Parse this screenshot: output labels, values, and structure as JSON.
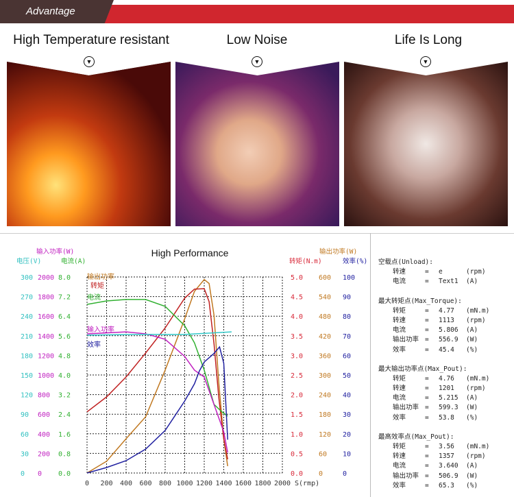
{
  "banner": {
    "title": "Advantage"
  },
  "features": [
    {
      "title": "High Temperature resistant",
      "image": "sparks-grinding"
    },
    {
      "title": "Low Noise",
      "image": "sleeping-baby"
    },
    {
      "title": "Life Is Long",
      "image": "clock-mechanism"
    }
  ],
  "chart_data": {
    "type": "line",
    "title": "High Performance",
    "xlabel": "S(rmp)",
    "xlim": [
      0,
      2000
    ],
    "x_ticks": [
      "0",
      "200",
      "400",
      "600",
      "800",
      "1000",
      "1200",
      "1400",
      "1600",
      "1800",
      "2000"
    ],
    "grid": true,
    "axes": {
      "voltage": {
        "label": "电压(V)",
        "side": "left",
        "range": [
          0,
          300
        ],
        "ticks": [
          "300",
          "270",
          "240",
          "210",
          "180",
          "150",
          "120",
          "90",
          "60",
          "30",
          "0"
        ],
        "color": "#30c0c0"
      },
      "input_power": {
        "label": "输入功率(W)",
        "side": "left",
        "range": [
          0,
          2000
        ],
        "ticks": [
          "2000",
          "1800",
          "1600",
          "1400",
          "1200",
          "1000",
          "800",
          "600",
          "400",
          "200",
          "0"
        ],
        "color": "#c020c0"
      },
      "current": {
        "label": "电流(A)",
        "side": "left",
        "range": [
          0,
          8
        ],
        "ticks": [
          "8.0",
          "7.2",
          "6.4",
          "5.6",
          "4.8",
          "4.0",
          "3.2",
          "2.4",
          "1.6",
          "0.8",
          "0.0"
        ],
        "color": "#30b030"
      },
      "torque": {
        "label": "转矩(N.m)",
        "side": "right",
        "range": [
          0,
          5
        ],
        "ticks": [
          "5.0",
          "4.5",
          "4.0",
          "3.5",
          "3.0",
          "2.5",
          "2.0",
          "1.5",
          "1.0",
          "0.5",
          "0.0"
        ],
        "color": "#d82838"
      },
      "output_power": {
        "label": "输出功率(W)",
        "side": "right",
        "range": [
          0,
          600
        ],
        "ticks": [
          "600",
          "540",
          "480",
          "420",
          "360",
          "300",
          "240",
          "180",
          "120",
          "60",
          "0"
        ],
        "color": "#c07820"
      },
      "efficiency": {
        "label": "效率(%)",
        "side": "right",
        "range": [
          0,
          100
        ],
        "ticks": [
          "100",
          "90",
          "80",
          "70",
          "60",
          "50",
          "40",
          "30",
          "20",
          "10",
          "0"
        ],
        "color": "#2020a0"
      }
    },
    "series": [
      {
        "name": "输出功率",
        "axis": "output_power",
        "color": "#c07820",
        "x": [
          0,
          200,
          400,
          600,
          800,
          1000,
          1100,
          1200,
          1250,
          1300,
          1350,
          1400,
          1440
        ],
        "y": [
          0,
          36,
          105,
          172,
          315,
          472,
          556,
          592,
          580,
          483,
          273,
          105,
          21
        ]
      },
      {
        "name": "转矩",
        "axis": "torque",
        "color": "#c02020",
        "x": [
          0,
          200,
          400,
          600,
          800,
          1000,
          1100,
          1200,
          1250,
          1300,
          1350,
          1400,
          1440
        ],
        "y": [
          1.56,
          1.94,
          2.45,
          3.06,
          3.7,
          4.46,
          4.69,
          4.7,
          4.37,
          3.3,
          1.9,
          0.87,
          0.35
        ]
      },
      {
        "name": "电流",
        "axis": "current",
        "color": "#30b030",
        "x": [
          0,
          200,
          400,
          600,
          800,
          1000,
          1100,
          1200,
          1300,
          1380,
          1440
        ],
        "y": [
          6.88,
          7.02,
          7.08,
          7.08,
          6.8,
          6.01,
          5.31,
          4.2,
          2.8,
          2.5,
          2.32
        ]
      },
      {
        "name": "输入功率",
        "axis": "input_power",
        "color": "#c020c0",
        "x": [
          0,
          400,
          600,
          800,
          1000,
          1100,
          1200,
          1300,
          1400,
          1440
        ],
        "y": [
          1420,
          1440,
          1420,
          1364,
          1189,
          1049,
          979,
          699,
          420,
          210
        ]
      },
      {
        "name": "",
        "axis": "voltage",
        "color": "#30c8c8",
        "x": [
          0,
          500,
          1000,
          1480
        ],
        "y": [
          211,
          212,
          212,
          216
        ]
      },
      {
        "name": "效率",
        "axis": "efficiency",
        "color": "#2020a0",
        "x": [
          0,
          200,
          400,
          600,
          800,
          1000,
          1100,
          1150,
          1200,
          1300,
          1357,
          1400,
          1440
        ],
        "y": [
          0,
          2.8,
          6.3,
          12.2,
          21.7,
          36.7,
          45.5,
          52,
          56.6,
          61,
          64.3,
          56,
          17
        ]
      }
    ]
  },
  "info": {
    "sections": [
      {
        "title": "空载点(Unload):",
        "rows": [
          {
            "label": "转速",
            "value": "e",
            "unit": "(rpm)"
          },
          {
            "label": "电流",
            "value": "Text1",
            "unit": "(A)"
          }
        ]
      },
      {
        "title": "最大转矩点(Max_Torque):",
        "rows": [
          {
            "label": "转矩",
            "value": "4.77",
            "unit": "(mN.m)"
          },
          {
            "label": "转速",
            "value": "1113",
            "unit": "(rpm)"
          },
          {
            "label": "电流",
            "value": "5.806",
            "unit": "(A)"
          },
          {
            "label": "输出功率",
            "value": "556.9",
            "unit": "(W)"
          },
          {
            "label": "效率",
            "value": "45.4",
            "unit": "(%)"
          }
        ]
      },
      {
        "title": "最大输出功率点(Max_Pout):",
        "rows": [
          {
            "label": "转矩",
            "value": "4.76",
            "unit": "(mN.m)"
          },
          {
            "label": "转速",
            "value": "1201",
            "unit": "(rpm)"
          },
          {
            "label": "电流",
            "value": "5.215",
            "unit": "(A)"
          },
          {
            "label": "输出功率",
            "value": "599.3",
            "unit": "(W)"
          },
          {
            "label": "效率",
            "value": "53.8",
            "unit": "(%)"
          }
        ]
      },
      {
        "title": "最高效率点(Max_Pout):",
        "rows": [
          {
            "label": "转矩",
            "value": "3.56",
            "unit": "(mN.m)"
          },
          {
            "label": "转速",
            "value": "1357",
            "unit": "(rpm)"
          },
          {
            "label": "电流",
            "value": "3.640",
            "unit": "(A)"
          },
          {
            "label": "输出功率",
            "value": "506.9",
            "unit": "(W)"
          },
          {
            "label": "效率",
            "value": "65.3",
            "unit": "(%)"
          }
        ]
      }
    ],
    "equals": "="
  }
}
